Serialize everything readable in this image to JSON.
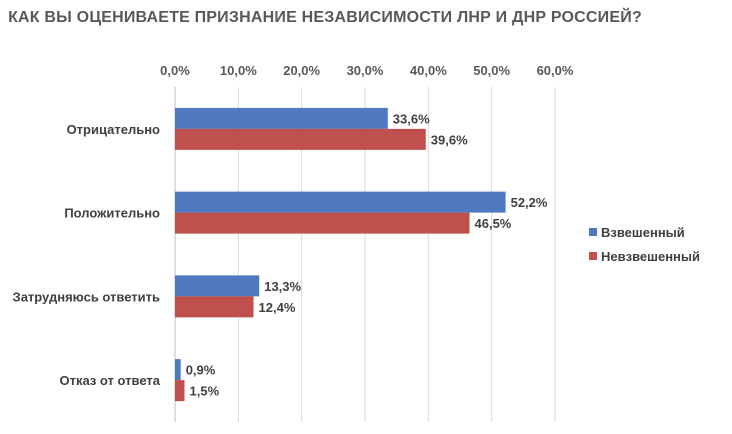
{
  "chart_data": {
    "type": "bar",
    "orientation": "horizontal",
    "title": "КАК ВЫ ОЦЕНИВАЕТЕ ПРИЗНАНИЕ НЕЗАВИСИМОСТИ ЛНР И ДНР РОССИЕЙ?",
    "categories": [
      "Отрицательно",
      "Положительно",
      "Затрудняюсь ответить",
      "Отказ от ответа"
    ],
    "series": [
      {
        "name": "Взвешенный",
        "color": "#4f7ac0",
        "values": [
          33.6,
          52.2,
          13.3,
          0.9
        ],
        "labels": [
          "33,6%",
          "52,2%",
          "13,3%",
          "0,9%"
        ]
      },
      {
        "name": "Невзвешенный",
        "color": "#c0504d",
        "values": [
          39.6,
          46.5,
          12.4,
          1.5
        ],
        "labels": [
          "39,6%",
          "46,5%",
          "12,4%",
          "1,5%"
        ]
      }
    ],
    "xlim": [
      0,
      60
    ],
    "xticks": [
      0,
      10,
      20,
      30,
      40,
      50,
      60
    ],
    "xtick_labels": [
      "0,0%",
      "10,0%",
      "20,0%",
      "30,0%",
      "40,0%",
      "50,0%",
      "60,0%"
    ],
    "x_axis_position": "top",
    "grid": true,
    "legend_position": "right"
  }
}
